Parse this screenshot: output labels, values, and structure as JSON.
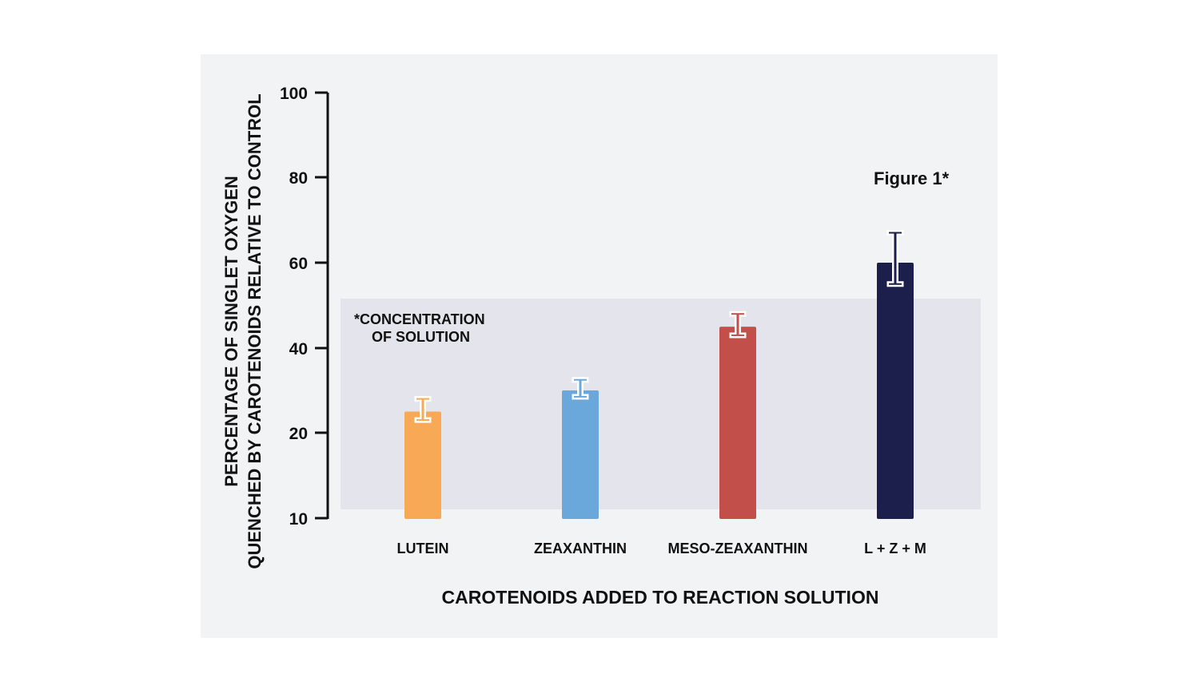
{
  "chart_data": {
    "type": "bar",
    "title": "Figure 1*",
    "xlabel": "CAROTENOIDS ADDED TO REACTION SOLUTION",
    "ylabel_line1": "PERCENTAGE OF SINGLET OXYGEN",
    "ylabel_line2": "QUENCHED BY CAROTENOIDS RELATIVE TO CONTROL",
    "annotation_line1": "*CONCENTRATION",
    "annotation_line2": "OF SOLUTION",
    "yticks": [
      10,
      20,
      40,
      60,
      80,
      100
    ],
    "ytick_labels": [
      "10",
      "20",
      "40",
      "60",
      "80",
      "100"
    ],
    "ylim": [
      10,
      100
    ],
    "categories": [
      "LUTEIN",
      "ZEAXANTHIN",
      "MESO-ZEAXANTHIN",
      "L + Z + M"
    ],
    "values": [
      25,
      30,
      45,
      60
    ],
    "error_low": [
      23,
      28.5,
      43,
      55
    ],
    "error_high": [
      28,
      32.5,
      48,
      67
    ],
    "colors": [
      "#f7a955",
      "#6aa8dc",
      "#c24f4a",
      "#1c1e4b"
    ],
    "background": "#f2f3f4",
    "band_color": "#e4e4ec",
    "grid": false,
    "legend": "none"
  }
}
